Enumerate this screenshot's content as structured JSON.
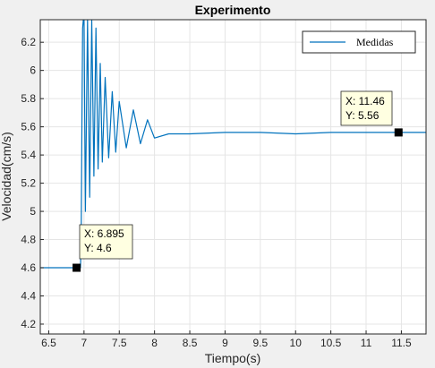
{
  "chart_data": {
    "type": "line",
    "title": "Experimento",
    "xlabel": "Tiempo(s)",
    "ylabel": "Velocidad(cm/s)",
    "xlim": [
      6.38,
      11.85
    ],
    "ylim": [
      4.13,
      6.36
    ],
    "xticks": [
      "6.5",
      "7",
      "7.5",
      "8",
      "8.5",
      "9",
      "9.5",
      "10",
      "10.5",
      "11",
      "11.5"
    ],
    "yticks": [
      "4.2",
      "4.4",
      "4.6",
      "4.8",
      "5",
      "5.2",
      "5.4",
      "5.6",
      "5.8",
      "6",
      "6.2"
    ],
    "grid": true,
    "legend": {
      "position": "top-right",
      "entries": [
        "Medidas"
      ]
    },
    "colors": {
      "series": "#0072bd",
      "axes": "#262626",
      "grid": "#e5e5e5",
      "tip_bg": "#ffffe1"
    },
    "series": [
      {
        "name": "Medidas",
        "x": [
          6.38,
          6.95,
          6.96,
          6.97,
          6.98,
          6.99,
          7.0,
          7.02,
          7.05,
          7.08,
          7.11,
          7.14,
          7.17,
          7.2,
          7.23,
          7.26,
          7.3,
          7.35,
          7.4,
          7.45,
          7.5,
          7.6,
          7.7,
          7.8,
          7.9,
          8.0,
          8.2,
          8.5,
          9.0,
          9.5,
          10.0,
          10.5,
          11.0,
          11.46,
          11.85
        ],
        "y": [
          4.6,
          4.6,
          4.8,
          5.6,
          6.3,
          6.36,
          6.36,
          5.0,
          6.36,
          5.1,
          6.36,
          5.25,
          6.3,
          5.3,
          6.05,
          5.35,
          5.95,
          5.38,
          5.85,
          5.42,
          5.78,
          5.45,
          5.72,
          5.48,
          5.65,
          5.52,
          5.55,
          5.55,
          5.56,
          5.56,
          5.55,
          5.56,
          5.56,
          5.56,
          5.56
        ]
      }
    ],
    "datatips": [
      {
        "x_label": "X: 6.895",
        "y_label": "Y: 4.6",
        "x": 6.895,
        "y": 4.6
      },
      {
        "x_label": "X: 11.46",
        "y_label": "Y: 5.56",
        "x": 11.46,
        "y": 5.56
      }
    ]
  }
}
